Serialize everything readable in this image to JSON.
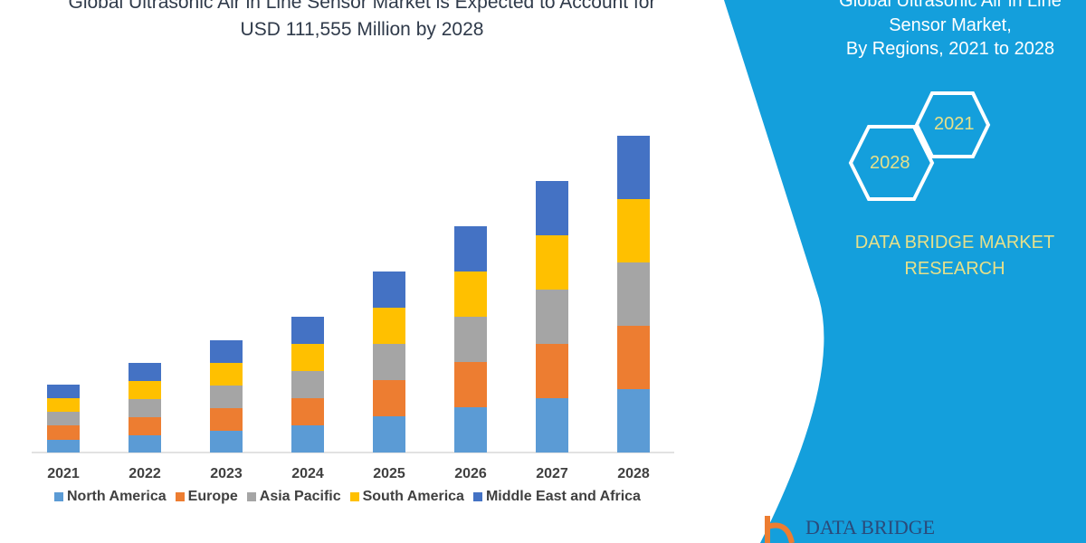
{
  "header": {
    "title_line1": "Global Ultrasonic Air in Line Sensor Market is Expected to Account for",
    "title_line2": "USD 111,555 Million by 2028"
  },
  "side_panel": {
    "title_line1": "Global Ultrasonic Air in Line",
    "title_line2": "Sensor Market,",
    "title_line3": "By Regions, 2021 to 2028",
    "hex_1": "2021",
    "hex_2": "2028",
    "brand_line1": "DATA BRIDGE MARKET",
    "brand_line2": "RESEARCH",
    "logo_text": "DATA BRIDGE",
    "panel_color": "#149fdc"
  },
  "chart_data": {
    "type": "bar",
    "stacked": true,
    "categories": [
      "2021",
      "2022",
      "2023",
      "2024",
      "2025",
      "2026",
      "2027",
      "2028"
    ],
    "series": [
      {
        "name": "North America",
        "color": "#5b9bd5",
        "values": [
          14,
          19,
          24,
          30,
          40,
          50,
          60,
          70
        ]
      },
      {
        "name": "Europe",
        "color": "#ed7d31",
        "values": [
          16,
          20,
          25,
          30,
          40,
          50,
          60,
          70
        ]
      },
      {
        "name": "Asia Pacific",
        "color": "#a5a5a5",
        "values": [
          15,
          20,
          25,
          30,
          40,
          50,
          60,
          70
        ]
      },
      {
        "name": "South America",
        "color": "#ffc000",
        "values": [
          15,
          20,
          25,
          30,
          40,
          50,
          60,
          70
        ]
      },
      {
        "name": "Middle East and Africa",
        "color": "#4472c4",
        "values": [
          15,
          20,
          25,
          30,
          40,
          50,
          60,
          70
        ]
      }
    ],
    "y_axis_shown": false,
    "grid": false,
    "legend_placement": "bottom"
  }
}
